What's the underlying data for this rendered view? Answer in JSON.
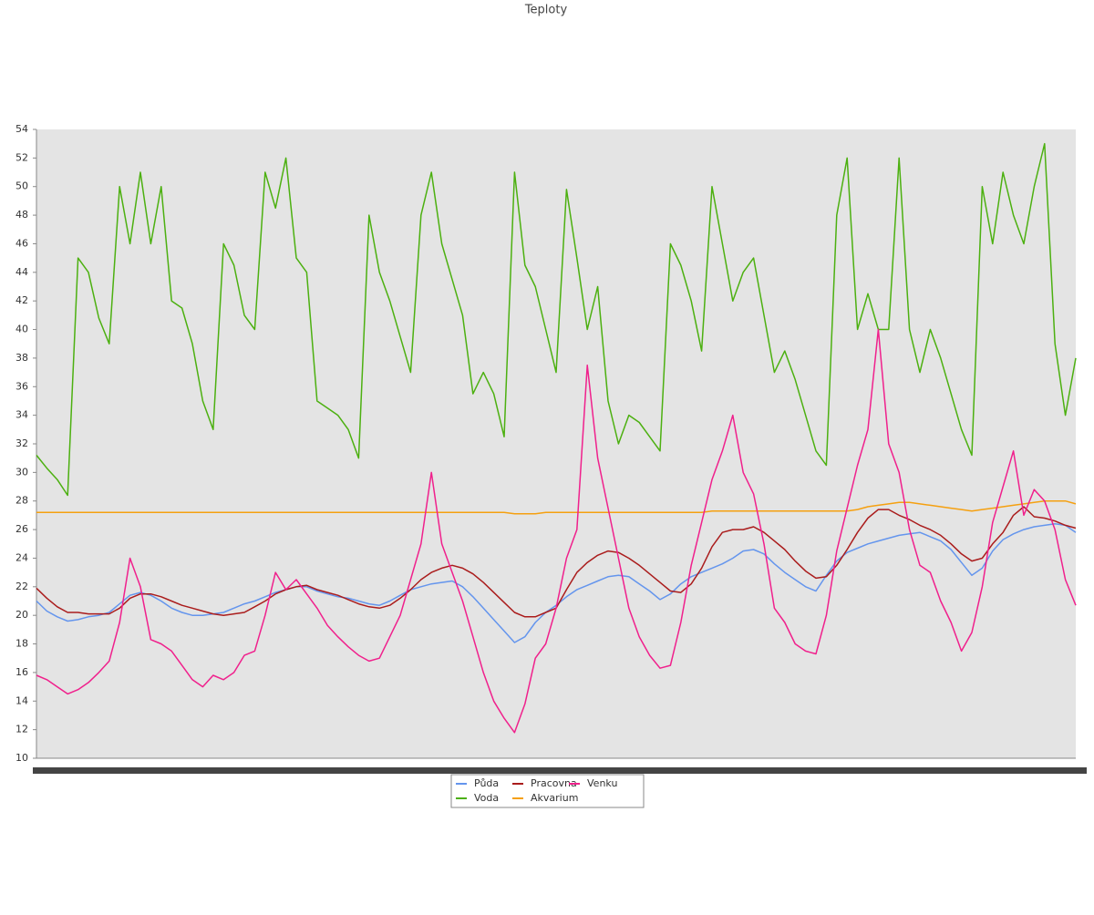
{
  "chart_data": {
    "type": "line",
    "title": "Teploty",
    "categories": [
      null,
      null,
      null,
      null,
      null,
      null,
      null,
      null,
      null,
      null,
      null,
      null,
      null,
      null,
      null,
      null,
      null,
      null,
      null,
      null,
      null,
      null,
      null,
      null,
      null,
      null,
      null,
      null,
      null,
      null,
      null,
      null,
      null,
      null,
      null,
      null,
      null,
      null,
      null,
      null,
      null,
      null,
      null,
      null,
      null,
      null,
      null,
      null,
      null,
      null,
      null,
      null,
      null,
      null,
      null,
      null,
      null,
      null,
      null,
      null,
      null,
      null,
      null,
      null,
      null,
      null,
      null,
      null,
      null,
      null,
      null,
      null,
      null,
      null,
      null,
      null,
      null,
      null,
      null,
      null,
      null,
      null,
      null,
      null,
      null,
      null,
      null,
      null,
      null,
      null,
      null,
      null,
      null,
      null,
      null,
      null,
      null,
      null,
      null,
      null,
      null
    ],
    "ylim": [
      10,
      54
    ],
    "yticks": [
      10,
      12,
      14,
      16,
      18,
      20,
      22,
      24,
      26,
      28,
      30,
      32,
      34,
      36,
      38,
      40,
      42,
      44,
      46,
      48,
      50,
      52,
      54
    ],
    "grid": false,
    "legend": "bottom",
    "series": [
      {
        "name": "Půda",
        "color": "#6495ed",
        "values": [
          21,
          20.3,
          19.9,
          19.6,
          19.7,
          19.9,
          20,
          20.2,
          20.8,
          21.4,
          21.6,
          21.4,
          21,
          20.5,
          20.2,
          20,
          20,
          20.1,
          20.2,
          20.5,
          20.8,
          21,
          21.3,
          21.6,
          21.8,
          22,
          22,
          21.7,
          21.5,
          21.3,
          21.2,
          21,
          20.8,
          20.7,
          21,
          21.4,
          21.8,
          22,
          22.2,
          22.3,
          22.4,
          22,
          21.3,
          20.5,
          19.7,
          18.9,
          18.1,
          18.5,
          19.5,
          20.2,
          20.7,
          21.3,
          21.8,
          22.1,
          22.4,
          22.7,
          22.8,
          22.7,
          22.2,
          21.7,
          21.1,
          21.5,
          22.2,
          22.7,
          23,
          23.3,
          23.6,
          24,
          24.5,
          24.6,
          24.3,
          23.6,
          23,
          22.5,
          22,
          21.7,
          22.8,
          23.8,
          24.4,
          24.7,
          25,
          25.2,
          25.4,
          25.6,
          25.7,
          25.8,
          25.5,
          25.2,
          24.6,
          23.7,
          22.8,
          23.3,
          24.5,
          25.3,
          25.7,
          26,
          26.2,
          26.3,
          26.4,
          26.3,
          25.8
        ]
      },
      {
        "name": "Voda",
        "color": "#4cb010",
        "values": [
          31.2,
          30.3,
          29.5,
          28.4,
          45,
          44,
          40.8,
          39,
          50,
          46,
          51,
          46,
          50,
          42,
          41.5,
          39,
          35,
          33,
          46,
          44.5,
          41,
          40,
          51,
          48.5,
          52,
          45,
          44,
          35,
          34.5,
          34,
          33,
          31,
          48,
          44,
          42,
          39.5,
          37,
          48,
          51,
          46,
          43.5,
          41,
          35.5,
          37,
          35.5,
          32.5,
          51,
          44.5,
          43,
          40,
          37,
          49.8,
          45,
          40,
          43,
          35,
          32,
          34,
          33.5,
          32.5,
          31.5,
          46,
          44.5,
          42,
          38.5,
          50,
          46,
          42,
          44,
          45,
          41,
          37,
          38.5,
          36.5,
          34,
          31.5,
          30.5,
          48,
          52,
          40,
          42.5,
          40,
          40,
          52,
          40,
          37,
          40,
          38,
          35.5,
          33,
          31.2,
          50,
          46,
          51,
          48,
          46,
          50,
          53,
          39,
          34,
          38
        ]
      },
      {
        "name": "Pracovna",
        "color": "#aa1c1c",
        "values": [
          21.9,
          21.2,
          20.6,
          20.2,
          20.2,
          20.1,
          20.1,
          20.1,
          20.5,
          21.2,
          21.5,
          21.5,
          21.3,
          21,
          20.7,
          20.5,
          20.3,
          20.1,
          20,
          20.1,
          20.2,
          20.6,
          21,
          21.5,
          21.8,
          22,
          22.1,
          21.8,
          21.6,
          21.4,
          21.1,
          20.8,
          20.6,
          20.5,
          20.7,
          21.2,
          21.8,
          22.5,
          23,
          23.3,
          23.5,
          23.3,
          22.9,
          22.3,
          21.6,
          20.9,
          20.2,
          19.9,
          19.9,
          20.2,
          20.5,
          21.8,
          23,
          23.7,
          24.2,
          24.5,
          24.4,
          24,
          23.5,
          22.9,
          22.3,
          21.7,
          21.6,
          22.2,
          23.3,
          24.8,
          25.8,
          26,
          26,
          26.2,
          25.8,
          25.2,
          24.6,
          23.8,
          23.1,
          22.6,
          22.7,
          23.5,
          24.6,
          25.8,
          26.8,
          27.4,
          27.4,
          27,
          26.7,
          26.3,
          26,
          25.6,
          25,
          24.3,
          23.8,
          24,
          25,
          25.8,
          27,
          27.6,
          26.9,
          26.8,
          26.6,
          26.3,
          26.1
        ]
      },
      {
        "name": "Akvarium",
        "color": "#f5a010",
        "values": [
          27.2,
          27.2,
          27.2,
          27.2,
          27.2,
          27.2,
          27.2,
          27.2,
          27.2,
          27.2,
          27.2,
          27.2,
          27.2,
          27.2,
          27.2,
          27.2,
          27.2,
          27.2,
          27.2,
          27.2,
          27.2,
          27.2,
          27.2,
          27.2,
          27.2,
          27.2,
          27.2,
          27.2,
          27.2,
          27.2,
          27.2,
          27.2,
          27.2,
          27.2,
          27.2,
          27.2,
          27.2,
          27.2,
          27.2,
          27.2,
          27.2,
          27.2,
          27.2,
          27.2,
          27.2,
          27.2,
          27.1,
          27.1,
          27.1,
          27.2,
          27.2,
          27.2,
          27.2,
          27.2,
          27.2,
          27.2,
          27.2,
          27.2,
          27.2,
          27.2,
          27.2,
          27.2,
          27.2,
          27.2,
          27.2,
          27.3,
          27.3,
          27.3,
          27.3,
          27.3,
          27.3,
          27.3,
          27.3,
          27.3,
          27.3,
          27.3,
          27.3,
          27.3,
          27.3,
          27.4,
          27.6,
          27.7,
          27.8,
          27.9,
          27.9,
          27.8,
          27.7,
          27.6,
          27.5,
          27.4,
          27.3,
          27.4,
          27.5,
          27.6,
          27.7,
          27.8,
          27.9,
          28,
          28,
          28,
          27.8
        ]
      },
      {
        "name": "Venku",
        "color": "#f0208c",
        "values": [
          15.8,
          15.5,
          15,
          14.5,
          14.8,
          15.3,
          16,
          16.8,
          19.5,
          24,
          22,
          18.3,
          18,
          17.5,
          16.5,
          15.5,
          15,
          15.8,
          15.5,
          16,
          17.2,
          17.5,
          20,
          23,
          21.8,
          22.5,
          21.5,
          20.5,
          19.3,
          18.5,
          17.8,
          17.2,
          16.8,
          17,
          18.5,
          20,
          22.5,
          25,
          30,
          25,
          23,
          21,
          18.5,
          16,
          14,
          12.8,
          11.8,
          13.8,
          17,
          18,
          20.5,
          24,
          26,
          37.5,
          31,
          27.5,
          24,
          20.5,
          18.5,
          17.2,
          16.3,
          16.5,
          19.5,
          23.5,
          26.5,
          29.5,
          31.5,
          34,
          30,
          28.5,
          25,
          20.5,
          19.5,
          18,
          17.5,
          17.3,
          20,
          24.5,
          27.5,
          30.5,
          33,
          40,
          32,
          30,
          26,
          23.5,
          23,
          21,
          19.5,
          17.5,
          18.8,
          22,
          26.5,
          29,
          31.5,
          27,
          28.8,
          28,
          26,
          22.5,
          20.7
        ]
      }
    ]
  }
}
